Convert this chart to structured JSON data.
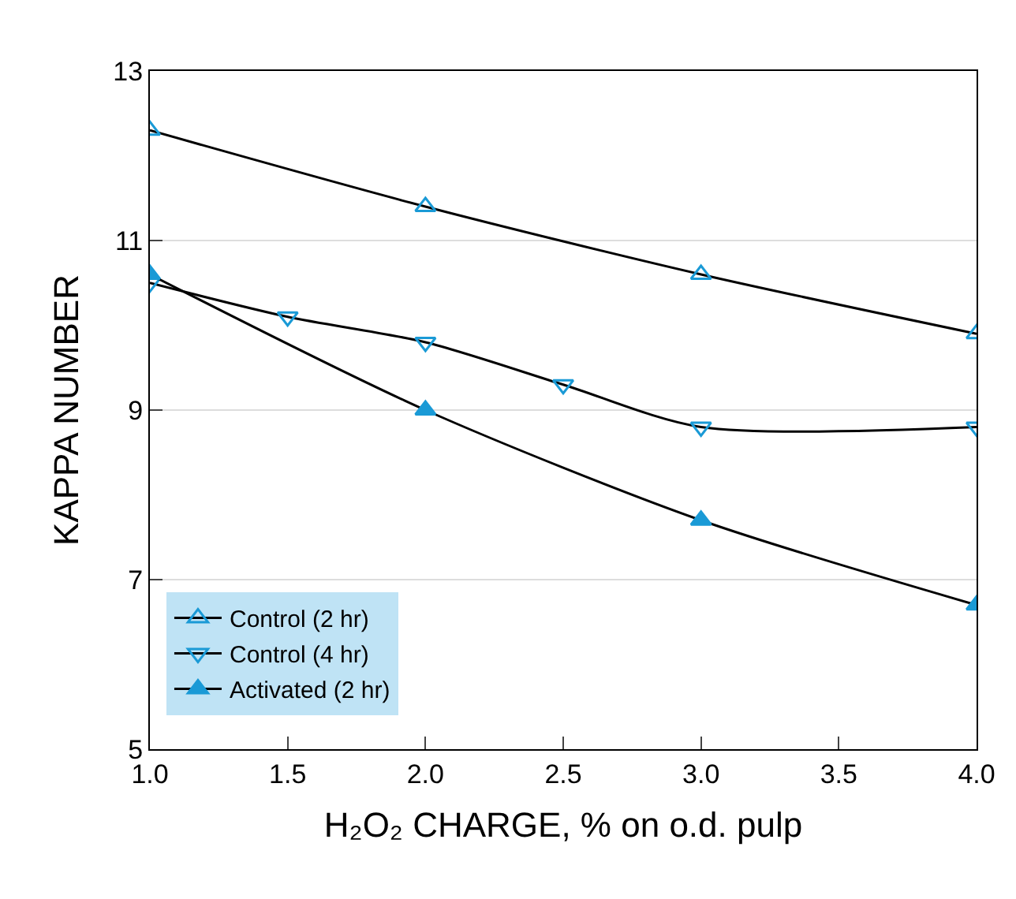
{
  "chart_data": {
    "type": "line",
    "xlabel": "H₂O₂ CHARGE, % on o.d. pulp",
    "ylabel": "KAPPA NUMBER",
    "xlim": [
      1.0,
      4.0
    ],
    "xticks": [
      {
        "value": 1.0,
        "label": "1.0"
      },
      {
        "value": 1.5,
        "label": "1.5"
      },
      {
        "value": 2.0,
        "label": "2.0"
      },
      {
        "value": 2.5,
        "label": "2.5"
      },
      {
        "value": 3.0,
        "label": "3.0"
      },
      {
        "value": 3.5,
        "label": "3.5"
      },
      {
        "value": 4.0,
        "label": "4.0"
      }
    ],
    "ylim": [
      5,
      13
    ],
    "yticks": [
      5,
      7,
      9,
      11,
      13
    ],
    "grid": "y",
    "legend": "bottom left",
    "line_style": "solid",
    "series": [
      {
        "name": "Control (2 hr)",
        "color": "#1a9ad6",
        "marker": "triangle-up-open",
        "x": [
          1.0,
          2.0,
          3.0,
          4.0
        ],
        "values": [
          12.3,
          11.4,
          10.6,
          9.9
        ]
      },
      {
        "name": "Control (4 hr)",
        "color": "#1a9ad6",
        "marker": "triangle-down-open",
        "x": [
          1.0,
          1.5,
          2.0,
          2.5,
          3.0,
          4.0
        ],
        "values": [
          10.5,
          10.1,
          9.8,
          9.3,
          8.8,
          8.8
        ]
      },
      {
        "name": "Activated (2 hr)",
        "color": "#1a9ad6",
        "marker": "triangle-up",
        "x": [
          1.0,
          2.0,
          3.0,
          4.0
        ],
        "values": [
          10.6,
          9.0,
          7.7,
          6.7
        ]
      }
    ]
  }
}
